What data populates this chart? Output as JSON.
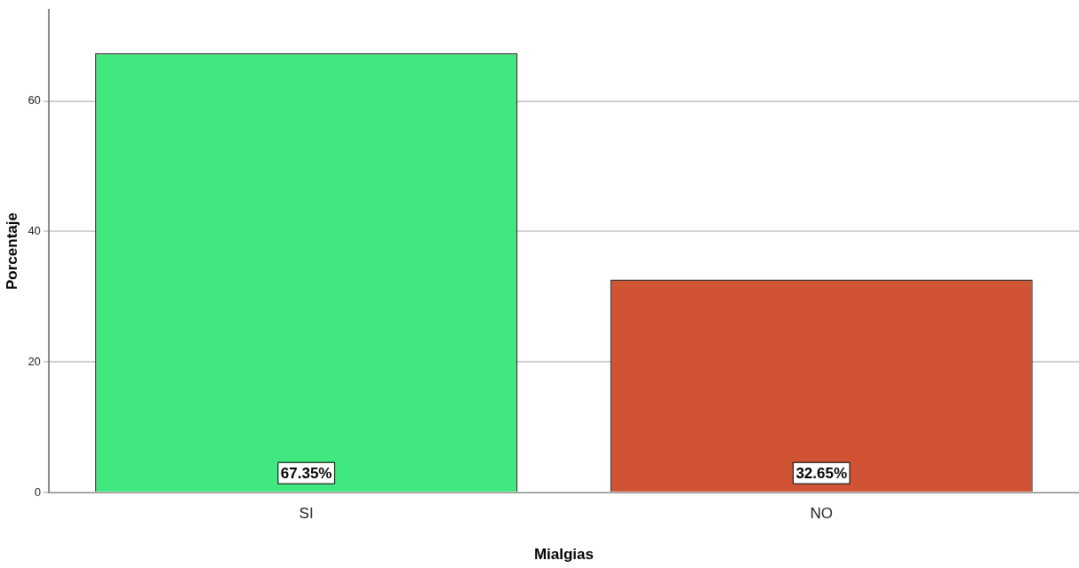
{
  "chart_data": {
    "type": "bar",
    "xlabel": "Mialgias",
    "ylabel": "Porcentaje",
    "categories": [
      "SI",
      "NO"
    ],
    "values": [
      67.35,
      32.65
    ],
    "value_labels": [
      "67.35%",
      "32.65%"
    ],
    "colors": [
      "#41e87f",
      "#d05434"
    ],
    "ylim": [
      0,
      74
    ],
    "yticks": [
      0,
      20,
      40,
      60
    ],
    "grid": "y"
  }
}
